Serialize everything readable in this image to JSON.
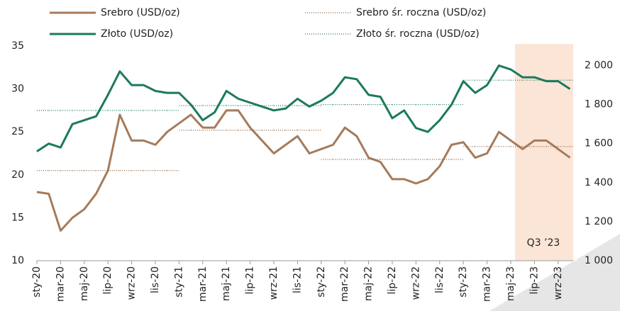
{
  "chart_data": {
    "type": "line",
    "categories": [
      "sty-20",
      null,
      "mar-20",
      null,
      "maj-20",
      null,
      "lip-20",
      null,
      "wrz-20",
      null,
      "lis-20",
      null,
      "sty-21",
      null,
      "mar-21",
      null,
      "maj-21",
      null,
      "lip-21",
      null,
      "wrz-21",
      null,
      "lis-21",
      null,
      "sty-22",
      null,
      "mar-22",
      null,
      "maj-22",
      null,
      "lip-22",
      null,
      "wrz-22",
      null,
      "lis-22",
      null,
      "sty-23",
      null,
      "mar-23",
      null,
      "maj-23",
      null,
      "lip-23",
      null,
      "wrz-23",
      null
    ],
    "series": [
      {
        "name": "Srebro (USD/oz)",
        "color": "#a57b5b",
        "style": "solid",
        "axis": "y",
        "values": [
          18,
          17.8,
          13.5,
          15,
          16,
          17.8,
          20.5,
          27,
          24,
          24,
          23.5,
          25,
          26,
          27,
          25.5,
          25.5,
          27.5,
          27.5,
          25.5,
          24,
          22.5,
          23.5,
          24.5,
          22.5,
          23,
          23.5,
          25.5,
          24.5,
          22,
          21.5,
          19.5,
          19.5,
          19,
          19.5,
          21,
          23.5,
          23.8,
          22,
          22.5,
          25,
          24,
          23,
          24,
          24,
          23,
          22
        ]
      },
      {
        "name": "Złoto (USD/oz)",
        "color": "#1b7a5c",
        "style": "solid",
        "axis": "y2",
        "values": [
          1560,
          1600,
          1580,
          1700,
          1720,
          1740,
          1850,
          1970,
          1900,
          1900,
          1870,
          1860,
          1860,
          1800,
          1720,
          1760,
          1870,
          1830,
          1810,
          1790,
          1770,
          1780,
          1830,
          1790,
          1820,
          1860,
          1940,
          1930,
          1850,
          1840,
          1730,
          1770,
          1680,
          1660,
          1720,
          1800,
          1920,
          1860,
          1900,
          2000,
          1980,
          1940,
          1940,
          1920,
          1920,
          1880
        ]
      },
      {
        "name": "Srebro śr. roczna (USD/oz)",
        "color": "#8b5e3c",
        "style": "dotted",
        "axis": "y",
        "values": [
          20.5,
          20.5,
          20.5,
          20.5,
          20.5,
          20.5,
          20.5,
          20.5,
          20.5,
          20.5,
          20.5,
          20.5,
          25.2,
          25.2,
          25.2,
          25.2,
          25.2,
          25.2,
          25.2,
          25.2,
          25.2,
          25.2,
          25.2,
          25.2,
          21.8,
          21.8,
          21.8,
          21.8,
          21.8,
          21.8,
          21.8,
          21.8,
          21.8,
          21.8,
          21.8,
          21.8,
          23.3,
          23.3,
          23.3,
          23.3,
          23.3,
          23.3,
          23.3,
          23.3,
          23.3,
          23.3
        ]
      },
      {
        "name": "Złoto śr. roczna (USD/oz)",
        "color": "#1b7a5c",
        "style": "dotted",
        "axis": "y2",
        "values": [
          1770,
          1770,
          1770,
          1770,
          1770,
          1770,
          1770,
          1770,
          1770,
          1770,
          1770,
          1770,
          1795,
          1795,
          1795,
          1795,
          1795,
          1795,
          1795,
          1795,
          1795,
          1795,
          1795,
          1795,
          1800,
          1800,
          1800,
          1800,
          1800,
          1800,
          1800,
          1800,
          1800,
          1800,
          1800,
          1800,
          1925,
          1925,
          1925,
          1925,
          1925,
          1925,
          1925,
          1925,
          1925,
          1925
        ]
      }
    ],
    "ylim": [
      10,
      35
    ],
    "yticks": [
      10,
      15,
      20,
      25,
      30,
      35
    ],
    "y2lim": [
      1000,
      2100
    ],
    "y2ticks": [
      {
        "value": 1000,
        "label": "1 000"
      },
      {
        "value": 1200,
        "label": "1 200"
      },
      {
        "value": 1400,
        "label": "1 400"
      },
      {
        "value": 1600,
        "label": "1 600"
      },
      {
        "value": 1800,
        "label": "1 800"
      },
      {
        "value": 2000,
        "label": "2 000"
      }
    ],
    "annotation": "Q3 ’23",
    "grid": false
  }
}
